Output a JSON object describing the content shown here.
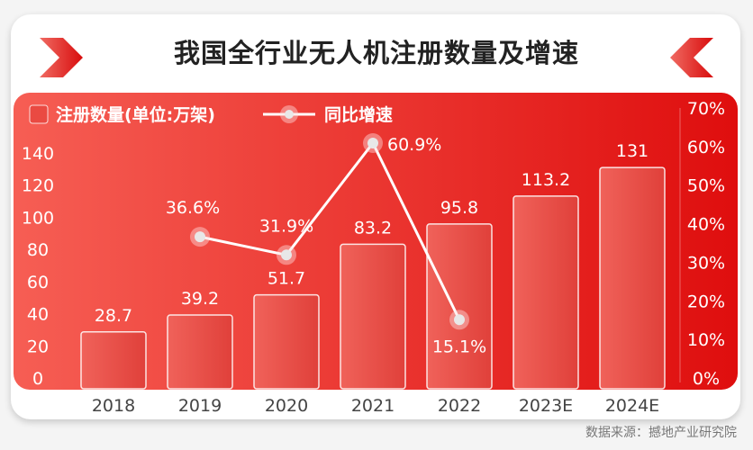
{
  "title": "我国全行业无人机注册数量及增速",
  "source": "数据来源：撼地产业研究院",
  "colors": {
    "panel_start": "#f55a50",
    "panel_end": "#e01010",
    "bar": "#ea4a42",
    "line": "#ffffff",
    "title": "#222222"
  },
  "chart_data": {
    "type": "bar",
    "title": "我国全行业无人机注册数量及增速",
    "categories": [
      "2018",
      "2019",
      "2020",
      "2021",
      "2022",
      "2023E",
      "2024E"
    ],
    "series": [
      {
        "name": "注册数量(单位:万架)",
        "type": "bar",
        "axis": "left",
        "values": [
          28.7,
          39.2,
          51.7,
          83.2,
          95.8,
          113.2,
          131
        ],
        "labels": [
          "28.7",
          "39.2",
          "51.7",
          "83.2",
          "95.8",
          "113.2",
          "131"
        ]
      },
      {
        "name": "同比增速",
        "type": "line",
        "axis": "right",
        "values": [
          null,
          36.6,
          31.9,
          60.9,
          15.1,
          null,
          null
        ],
        "labels": [
          "",
          "36.6%",
          "31.9%",
          "60.9%",
          "15.1%",
          "",
          ""
        ]
      }
    ],
    "left_axis": {
      "min": 0,
      "max": 140,
      "ticks": [
        "0",
        "20",
        "40",
        "60",
        "80",
        "100",
        "120",
        "140"
      ]
    },
    "right_axis": {
      "min": 0,
      "max": 70,
      "ticks": [
        "0%",
        "10%",
        "20%",
        "30%",
        "40%",
        "50%",
        "60%",
        "70%"
      ]
    },
    "legend": {
      "placement": "top-left",
      "items": [
        "注册数量(单位:万架)",
        "同比增速"
      ]
    },
    "grid": false
  }
}
